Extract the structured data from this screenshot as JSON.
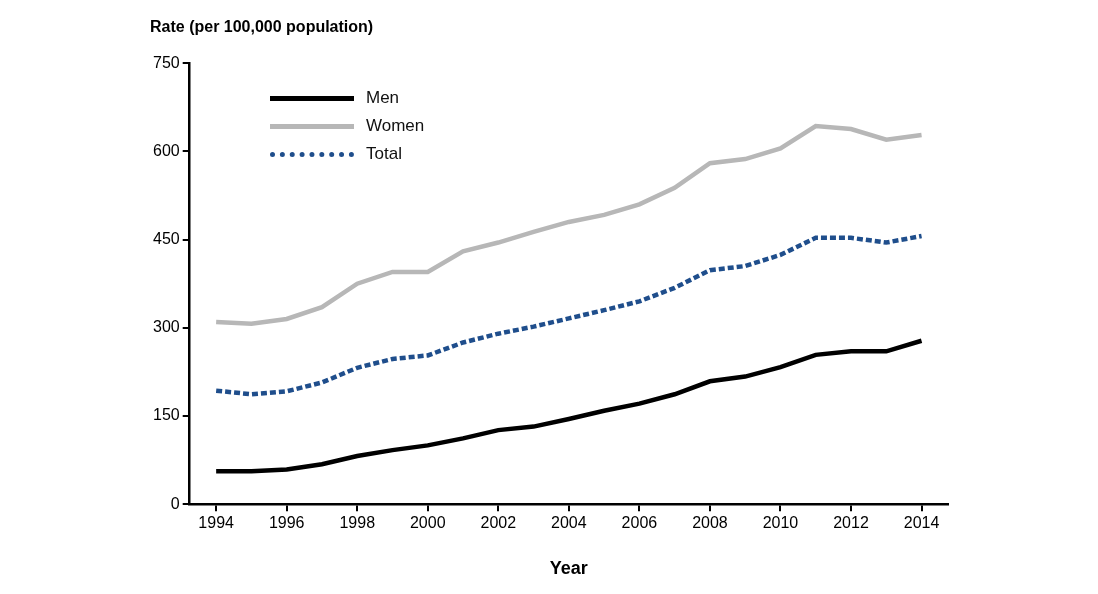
{
  "chart_data": {
    "type": "line",
    "ylabel": "Rate (per 100,000 population)",
    "xlabel": "Year",
    "x": [
      1994,
      1995,
      1996,
      1997,
      1998,
      1999,
      2000,
      2001,
      2002,
      2003,
      2004,
      2005,
      2006,
      2007,
      2008,
      2009,
      2010,
      2011,
      2012,
      2013,
      2014
    ],
    "series": [
      {
        "name": "Men",
        "color": "#000000",
        "line_style": "solid",
        "values": [
          56,
          56,
          59,
          68,
          82,
          92,
          100,
          112,
          126,
          132,
          145,
          159,
          171,
          187,
          209,
          217,
          233,
          254,
          260,
          260,
          278
        ]
      },
      {
        "name": "Women",
        "color": "#b7b7b7",
        "line_style": "solid",
        "values": [
          310,
          307,
          315,
          335,
          375,
          395,
          395,
          430,
          445,
          463,
          480,
          492,
          510,
          538,
          580,
          587,
          605,
          643,
          638,
          620,
          628
        ]
      },
      {
        "name": "Total",
        "color": "#1f4e8c",
        "line_style": "dotted",
        "values": [
          193,
          187,
          192,
          207,
          232,
          247,
          253,
          275,
          290,
          302,
          316,
          330,
          345,
          368,
          398,
          405,
          424,
          453,
          453,
          445,
          456
        ]
      }
    ],
    "xlim": [
      1993.25,
      2014.75
    ],
    "xticks": [
      1994,
      1996,
      1998,
      2000,
      2002,
      2004,
      2006,
      2008,
      2010,
      2012,
      2014
    ],
    "ylim": [
      0,
      750
    ],
    "yticks": [
      0,
      150,
      300,
      450,
      600,
      750
    ],
    "grid": false,
    "legend": "upper left"
  }
}
